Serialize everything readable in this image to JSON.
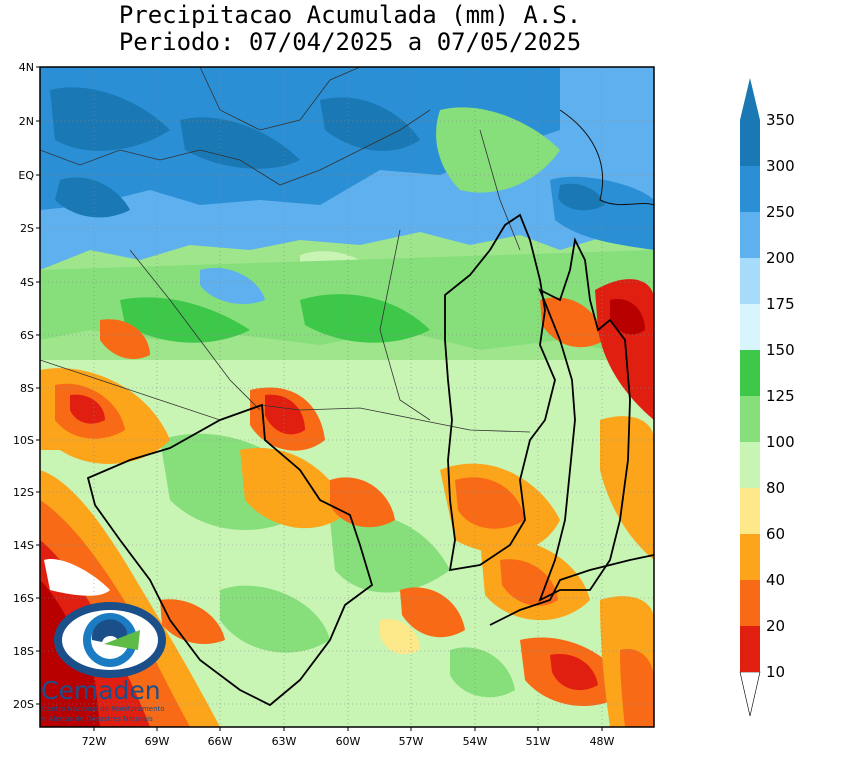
{
  "title_line1": "Precipitacao Acumulada (mm) A.S.",
  "title_line2": "Periodo: 07/04/2025 a 07/05/2025",
  "lat_ticks": [
    "4N",
    "2N",
    "EQ",
    "2S",
    "4S",
    "6S",
    "8S",
    "10S",
    "12S",
    "14S",
    "16S",
    "18S",
    "20S"
  ],
  "lon_ticks": [
    "72W",
    "69W",
    "66W",
    "63W",
    "60W",
    "57W",
    "54W",
    "51W",
    "48W"
  ],
  "colorbar": [
    {
      "label": "350",
      "color": "#1a78b4"
    },
    {
      "label": "300",
      "color": "#2b8fd6"
    },
    {
      "label": "250",
      "color": "#5fb0ee"
    },
    {
      "label": "200",
      "color": "#a6dcfa"
    },
    {
      "label": "175",
      "color": "#d8f4fd"
    },
    {
      "label": "150",
      "color": "#3ec84a"
    },
    {
      "label": "125",
      "color": "#86df7a"
    },
    {
      "label": "100",
      "color": "#c8f4b4"
    },
    {
      "label": "80",
      "color": "#fde88a"
    },
    {
      "label": "60",
      "color": "#fca41a"
    },
    {
      "label": "40",
      "color": "#f86a16"
    },
    {
      "label": "20",
      "color": "#e01f10"
    },
    {
      "label": "10",
      "color": "#b80000"
    }
  ],
  "logo": {
    "name": "Cemaden",
    "sub1": "Centro Nacional de Monitoramento",
    "sub2": "e Alertas de Desastres Naturais"
  }
}
